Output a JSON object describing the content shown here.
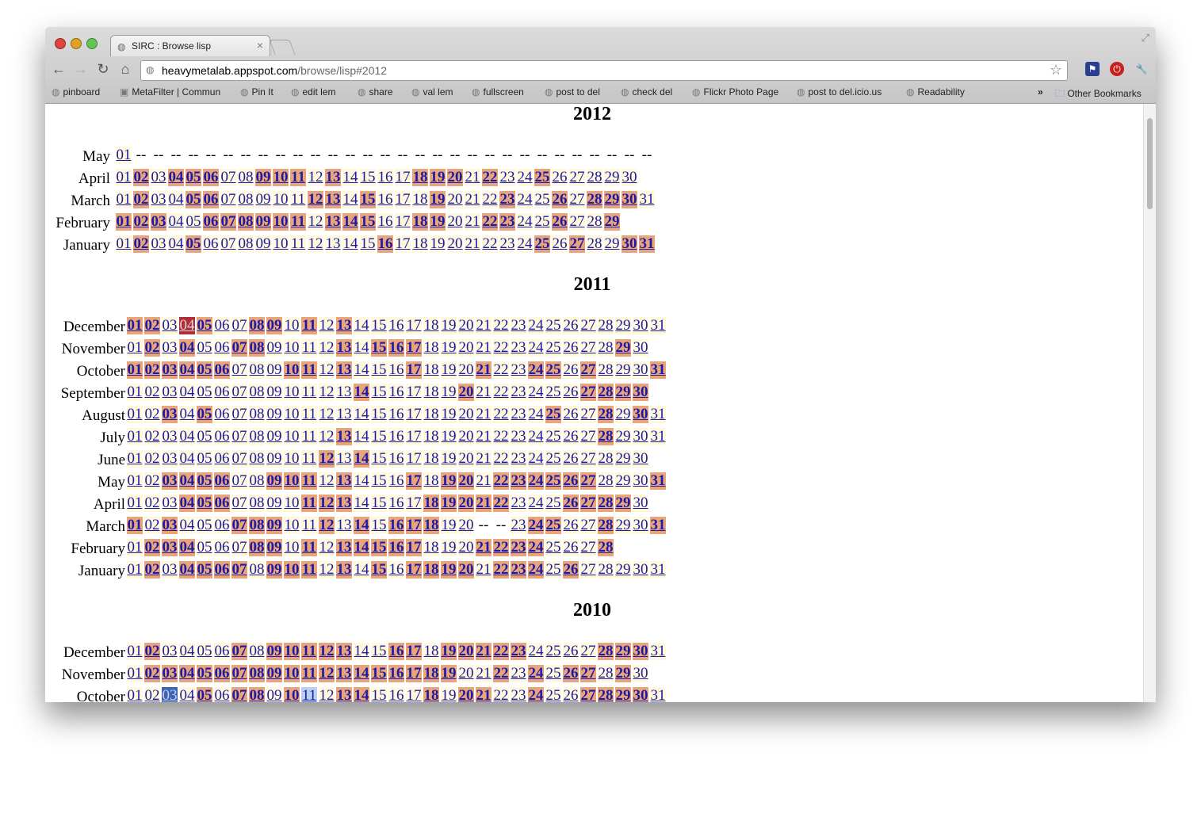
{
  "browser": {
    "tab_title": "SIRC : Browse lisp",
    "url_host": "heavymetalab.appspot.com",
    "url_path": "/browse/lisp#2012",
    "bookmarks": [
      "pinboard",
      "MetaFilter | Commun",
      "Pin It",
      "edit lem",
      "share",
      "val lem",
      "fullscreen",
      "post to del",
      "check del",
      "Flickr Photo Page",
      "post to del.icio.us",
      "Readability"
    ],
    "overflow_label": "»",
    "other_bookmarks": "Other Bookmarks",
    "icons": {
      "back": "back-arrow-icon",
      "forward": "forward-arrow-icon",
      "reload": "reload-icon",
      "home": "home-icon",
      "star": "star-icon"
    }
  },
  "years": [
    {
      "year": "2012",
      "months": [
        {
          "name": "May",
          "days": [
            "1",
            "-",
            "-",
            "-",
            "-",
            "-",
            "-",
            "-",
            "-",
            "-",
            "-",
            "-",
            "-",
            "-",
            "-",
            "-",
            "-",
            "-",
            "-",
            "-",
            "-",
            "-",
            "-",
            "-",
            "-",
            "-",
            "-",
            "-",
            "-",
            "-",
            "-"
          ]
        },
        {
          "name": "April",
          "days": [
            "1",
            "2",
            "1",
            "2",
            "2",
            "2",
            "1",
            "1",
            "2",
            "2",
            "2",
            "1",
            "2",
            "1",
            "1",
            "1",
            "1",
            "2",
            "2",
            "2",
            "1",
            "2",
            "1",
            "1",
            "2",
            "1",
            "1",
            "1",
            "1",
            "1"
          ]
        },
        {
          "name": "March",
          "days": [
            "1",
            "2",
            "1",
            "1",
            "2",
            "2",
            "1",
            "1",
            "1",
            "1",
            "1",
            "2",
            "2",
            "1",
            "2",
            "1",
            "1",
            "1",
            "2",
            "1",
            "1",
            "1",
            "2",
            "1",
            "1",
            "2",
            "1",
            "2",
            "2",
            "2",
            "1"
          ]
        },
        {
          "name": "February",
          "days": [
            "2",
            "2",
            "2",
            "1",
            "1",
            "2",
            "2",
            "2",
            "2",
            "2",
            "2",
            "1",
            "2",
            "2",
            "2",
            "1",
            "1",
            "2",
            "2",
            "1",
            "1",
            "2",
            "2",
            "1",
            "1",
            "2",
            "1",
            "1",
            "2"
          ]
        },
        {
          "name": "January",
          "days": [
            "1",
            "2",
            "1",
            "1",
            "2",
            "1",
            "1",
            "1",
            "1",
            "1",
            "1",
            "1",
            "1",
            "1",
            "1",
            "2",
            "1",
            "1",
            "1",
            "1",
            "1",
            "1",
            "1",
            "1",
            "2",
            "1",
            "2",
            "1",
            "1",
            "2",
            "2"
          ]
        }
      ]
    },
    {
      "year": "2011",
      "months": [
        {
          "name": "December",
          "days": [
            "2",
            "2",
            "1",
            "3",
            "2",
            "1",
            "1",
            "2",
            "2",
            "1",
            "2",
            "1",
            "2",
            "1",
            "1",
            "1",
            "1",
            "1",
            "1",
            "1",
            "1",
            "1",
            "1",
            "1",
            "1",
            "1",
            "1",
            "1",
            "1",
            "1",
            "1"
          ]
        },
        {
          "name": "November",
          "days": [
            "1",
            "2",
            "1",
            "2",
            "1",
            "1",
            "2",
            "2",
            "1",
            "1",
            "1",
            "1",
            "2",
            "1",
            "2",
            "2",
            "2",
            "1",
            "1",
            "1",
            "1",
            "1",
            "1",
            "1",
            "1",
            "1",
            "1",
            "1",
            "2",
            "1"
          ]
        },
        {
          "name": "October",
          "days": [
            "2",
            "2",
            "2",
            "2",
            "2",
            "2",
            "1",
            "1",
            "1",
            "2",
            "2",
            "1",
            "2",
            "1",
            "1",
            "1",
            "2",
            "1",
            "1",
            "1",
            "2",
            "1",
            "1",
            "2",
            "2",
            "1",
            "2",
            "1",
            "1",
            "1",
            "2"
          ]
        },
        {
          "name": "September",
          "days": [
            "1",
            "1",
            "1",
            "1",
            "1",
            "1",
            "1",
            "1",
            "1",
            "1",
            "1",
            "1",
            "1",
            "2",
            "1",
            "1",
            "1",
            "1",
            "1",
            "2",
            "1",
            "1",
            "1",
            "1",
            "1",
            "1",
            "2",
            "2",
            "2",
            "2"
          ]
        },
        {
          "name": "August",
          "days": [
            "1",
            "1",
            "2",
            "1",
            "2",
            "1",
            "1",
            "1",
            "1",
            "1",
            "1",
            "1",
            "1",
            "1",
            "1",
            "1",
            "1",
            "1",
            "1",
            "1",
            "1",
            "1",
            "1",
            "1",
            "2",
            "1",
            "1",
            "2",
            "1",
            "2",
            "1"
          ]
        },
        {
          "name": "July",
          "days": [
            "1",
            "1",
            "1",
            "1",
            "1",
            "1",
            "1",
            "1",
            "1",
            "1",
            "1",
            "1",
            "2",
            "1",
            "1",
            "1",
            "1",
            "1",
            "1",
            "1",
            "1",
            "1",
            "1",
            "1",
            "1",
            "1",
            "1",
            "2",
            "1",
            "1",
            "1"
          ]
        },
        {
          "name": "June",
          "days": [
            "1",
            "1",
            "1",
            "1",
            "1",
            "1",
            "1",
            "1",
            "1",
            "1",
            "1",
            "2",
            "1",
            "2",
            "1",
            "1",
            "1",
            "1",
            "1",
            "1",
            "1",
            "1",
            "1",
            "1",
            "1",
            "1",
            "1",
            "1",
            "1",
            "1"
          ]
        },
        {
          "name": "May",
          "days": [
            "1",
            "1",
            "2",
            "2",
            "2",
            "2",
            "1",
            "1",
            "2",
            "2",
            "2",
            "1",
            "2",
            "1",
            "1",
            "1",
            "2",
            "1",
            "2",
            "2",
            "1",
            "2",
            "2",
            "2",
            "2",
            "2",
            "2",
            "1",
            "1",
            "1",
            "2"
          ]
        },
        {
          "name": "April",
          "days": [
            "1",
            "1",
            "1",
            "2",
            "2",
            "2",
            "1",
            "1",
            "1",
            "1",
            "2",
            "2",
            "2",
            "1",
            "1",
            "1",
            "1",
            "2",
            "2",
            "2",
            "2",
            "2",
            "1",
            "1",
            "1",
            "2",
            "2",
            "2",
            "2",
            "1"
          ]
        },
        {
          "name": "March",
          "days": [
            "2",
            "1",
            "2",
            "1",
            "1",
            "1",
            "2",
            "2",
            "2",
            "1",
            "1",
            "2",
            "1",
            "2",
            "1",
            "2",
            "2",
            "2",
            "1",
            "1",
            "-",
            "-",
            "1",
            "2",
            "2",
            "1",
            "1",
            "2",
            "1",
            "1",
            "2"
          ]
        },
        {
          "name": "February",
          "days": [
            "1",
            "2",
            "2",
            "2",
            "1",
            "1",
            "1",
            "2",
            "2",
            "1",
            "2",
            "1",
            "2",
            "2",
            "2",
            "2",
            "2",
            "1",
            "1",
            "1",
            "2",
            "2",
            "2",
            "2",
            "1",
            "1",
            "1",
            "2"
          ]
        },
        {
          "name": "January",
          "days": [
            "1",
            "2",
            "1",
            "2",
            "2",
            "2",
            "2",
            "1",
            "2",
            "2",
            "2",
            "1",
            "2",
            "1",
            "2",
            "1",
            "2",
            "2",
            "2",
            "2",
            "1",
            "2",
            "2",
            "2",
            "1",
            "2",
            "1",
            "1",
            "1",
            "1",
            "1"
          ]
        }
      ]
    },
    {
      "year": "2010",
      "months": [
        {
          "name": "December",
          "days": [
            "1",
            "2",
            "1",
            "1",
            "1",
            "1",
            "2",
            "1",
            "2",
            "2",
            "2",
            "2",
            "2",
            "1",
            "1",
            "2",
            "2",
            "1",
            "2",
            "2",
            "2",
            "2",
            "2",
            "1",
            "1",
            "1",
            "1",
            "2",
            "2",
            "2",
            "1"
          ]
        },
        {
          "name": "November",
          "days": [
            "1",
            "2",
            "2",
            "2",
            "2",
            "2",
            "2",
            "2",
            "2",
            "2",
            "2",
            "2",
            "2",
            "2",
            "2",
            "2",
            "2",
            "2",
            "2",
            "1",
            "1",
            "2",
            "1",
            "2",
            "1",
            "2",
            "2",
            "1",
            "2",
            "1"
          ]
        },
        {
          "name": "October",
          "days": [
            "1",
            "1",
            "S",
            "1",
            "2",
            "1",
            "2",
            "2",
            "1",
            "2",
            "s",
            "1",
            "2",
            "2",
            "1",
            "1",
            "1",
            "2",
            "1",
            "2",
            "2",
            "1",
            "1",
            "2",
            "1",
            "1",
            "2",
            "2",
            "2",
            "2",
            "1"
          ]
        }
      ]
    }
  ]
}
